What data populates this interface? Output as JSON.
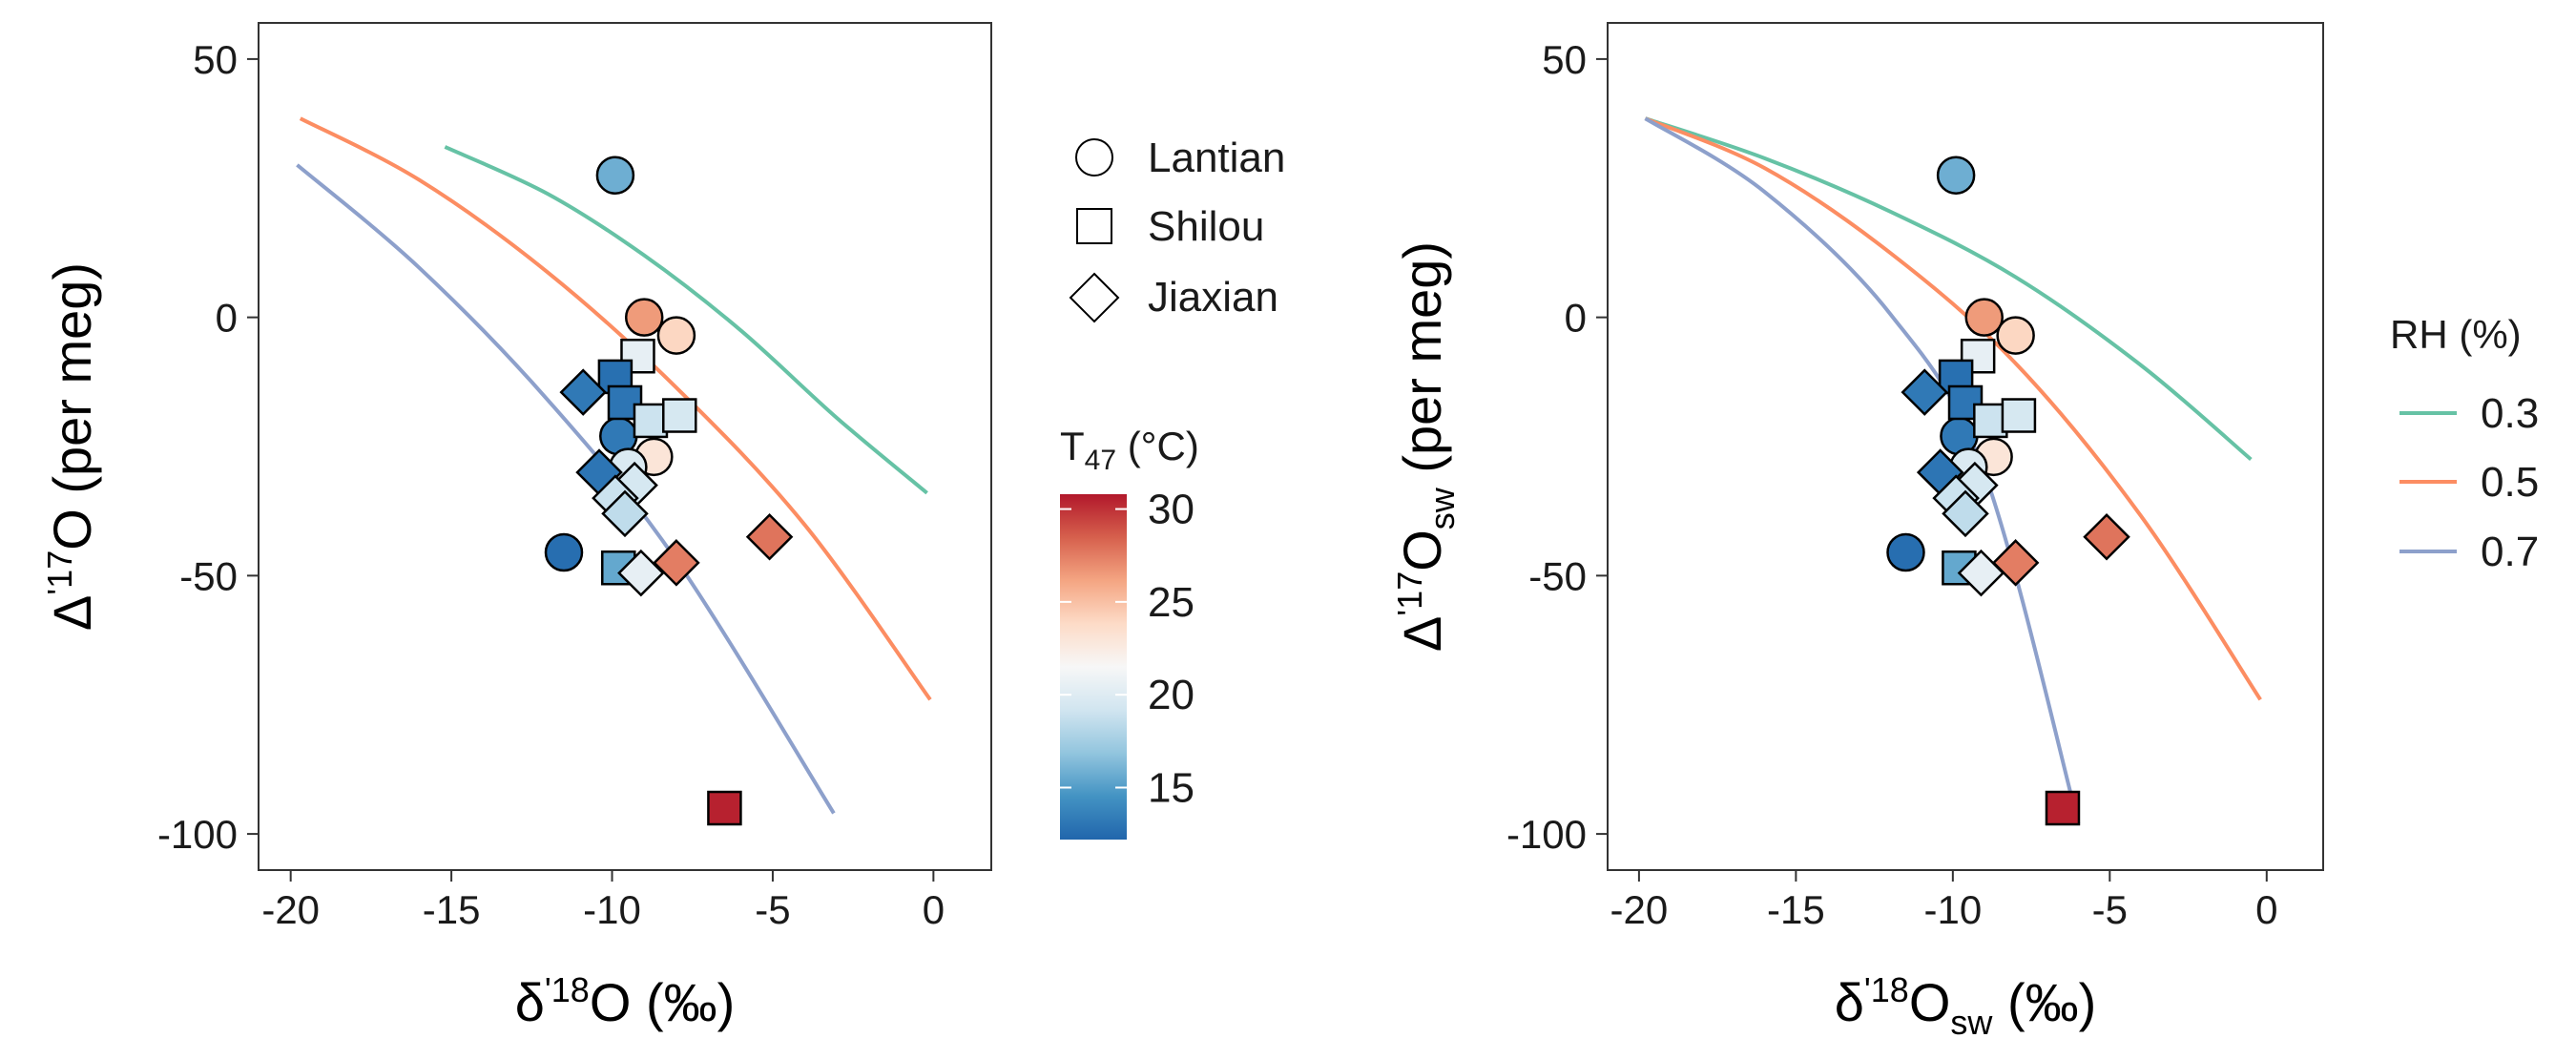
{
  "shape_legend": {
    "items": [
      {
        "label": "Lantian",
        "shape": "circle"
      },
      {
        "label": "Shilou",
        "shape": "square"
      },
      {
        "label": "Jiaxian",
        "shape": "diamond"
      }
    ]
  },
  "colorbar": {
    "title_main": "T",
    "title_sub": "47",
    "title_unit": " (°C)",
    "ticks": [
      {
        "value": 30,
        "label": "30"
      },
      {
        "value": 25,
        "label": "25"
      },
      {
        "value": 20,
        "label": "20"
      },
      {
        "value": 15,
        "label": "15"
      }
    ],
    "range": [
      12.2,
      30.8
    ],
    "colors": [
      "#2166ac",
      "#4393c3",
      "#92c5de",
      "#d1e5f0",
      "#f7f7f7",
      "#fddbc7",
      "#f4a582",
      "#d6604d",
      "#b2182b"
    ]
  },
  "rh_legend": {
    "title": "RH (%)",
    "items": [
      {
        "label": "0.3",
        "color": "#66c2a5"
      },
      {
        "label": "0.5",
        "color": "#fc8d62"
      },
      {
        "label": "0.7",
        "color": "#8da0cb"
      }
    ]
  },
  "chart_data": [
    {
      "type": "scatter",
      "xlabel": {
        "prefix": "δ",
        "sup": "'18",
        "main": "O (‰)",
        "sub": ""
      },
      "ylabel": {
        "prefix": "Δ",
        "sup": "'17",
        "main": "O (per meg)",
        "sub": ""
      },
      "xlim": [
        -21,
        1.8
      ],
      "ylim": [
        -107,
        57
      ],
      "xticks": [
        -20,
        -15,
        -10,
        -5,
        0
      ],
      "yticks": [
        50,
        0,
        -50,
        -100
      ],
      "curves": [
        {
          "rh": "0.3",
          "color": "#66c2a5",
          "x": [
            -15.2,
            -12.0,
            -9.0,
            -6.0,
            -3.0,
            -0.2
          ],
          "y": [
            33,
            23.9,
            12,
            -2.5,
            -19.5,
            -34
          ]
        },
        {
          "rh": "0.5",
          "color": "#fc8d62",
          "x": [
            -19.7,
            -16.0,
            -12.0,
            -8.0,
            -4.0,
            -0.1
          ],
          "y": [
            38.5,
            26.6,
            8.7,
            -13.6,
            -40.2,
            -74
          ]
        },
        {
          "rh": "0.7",
          "color": "#8da0cb",
          "x": [
            -19.8,
            -16.0,
            -12.0,
            -8.0,
            -3.1
          ],
          "y": [
            29.5,
            9.6,
            -16,
            -47,
            -96
          ]
        }
      ],
      "points": [
        {
          "site": "Lantian",
          "x": -9.9,
          "y": 27.5,
          "t": 15.8
        },
        {
          "site": "Lantian",
          "x": -9.0,
          "y": 0,
          "t": 26.5
        },
        {
          "site": "Lantian",
          "x": -8.0,
          "y": -3.5,
          "t": 24.0
        },
        {
          "site": "Lantian",
          "x": -8.7,
          "y": -27,
          "t": 23.0
        },
        {
          "site": "Lantian",
          "x": -9.8,
          "y": -23,
          "t": 13.2
        },
        {
          "site": "Lantian",
          "x": -9.5,
          "y": -29,
          "t": 19.8
        },
        {
          "site": "Lantian",
          "x": -11.5,
          "y": -45.5,
          "t": 12.6
        },
        {
          "site": "Shilou",
          "x": -9.2,
          "y": -7.5,
          "t": 20.5
        },
        {
          "site": "Shilou",
          "x": -9.9,
          "y": -11.5,
          "t": 12.7
        },
        {
          "site": "Shilou",
          "x": -9.6,
          "y": -16.5,
          "t": 13.0
        },
        {
          "site": "Shilou",
          "x": -8.8,
          "y": -20,
          "t": 19.0
        },
        {
          "site": "Shilou",
          "x": -7.9,
          "y": -19,
          "t": 19.5
        },
        {
          "site": "Shilou",
          "x": -9.8,
          "y": -48.5,
          "t": 15.5
        },
        {
          "site": "Shilou",
          "x": -6.5,
          "y": -95,
          "t": 30.5
        },
        {
          "site": "Jiaxian",
          "x": -10.9,
          "y": -14.5,
          "t": 13.2
        },
        {
          "site": "Jiaxian",
          "x": -10.4,
          "y": -30,
          "t": 13.0
        },
        {
          "site": "Jiaxian",
          "x": -9.3,
          "y": -32.5,
          "t": 19.5
        },
        {
          "site": "Jiaxian",
          "x": -9.9,
          "y": -35,
          "t": 19.0
        },
        {
          "site": "Jiaxian",
          "x": -9.6,
          "y": -38,
          "t": 18.5
        },
        {
          "site": "Jiaxian",
          "x": -9.1,
          "y": -49.5,
          "t": 20.5
        },
        {
          "site": "Jiaxian",
          "x": -8.0,
          "y": -47.5,
          "t": 27.5
        },
        {
          "site": "Jiaxian",
          "x": -5.1,
          "y": -42.5,
          "t": 27.8
        }
      ]
    },
    {
      "type": "scatter",
      "xlabel": {
        "prefix": "δ",
        "sup": "'18",
        "main": "O",
        "sub": "sw",
        "suffix": " (‰)"
      },
      "ylabel": {
        "prefix": "Δ",
        "sup": "'17",
        "main": "O",
        "sub": "sw",
        "suffix": " (per meg)"
      },
      "xlim": [
        -21,
        1.8
      ],
      "ylim": [
        -107,
        57
      ],
      "xticks": [
        -20,
        -15,
        -10,
        -5,
        0
      ],
      "yticks": [
        50,
        0,
        -50,
        -100
      ],
      "curves": [
        {
          "rh": "0.3",
          "color": "#66c2a5",
          "x": [
            -19.8,
            -16.0,
            -12.0,
            -8.0,
            -4.0,
            -0.5
          ],
          "y": [
            38.5,
            30.8,
            20.5,
            7.8,
            -9.3,
            -27.5
          ]
        },
        {
          "rh": "0.5",
          "color": "#fc8d62",
          "x": [
            -19.8,
            -16.0,
            -12.0,
            -8.0,
            -4.0,
            -0.2
          ],
          "y": [
            38.5,
            28.9,
            12.5,
            -8.9,
            -38.5,
            -74
          ]
        },
        {
          "rh": "0.7",
          "color": "#8da0cb",
          "x": [
            -19.8,
            -16.0,
            -12.0,
            -9.0,
            -6.0
          ],
          "y": [
            38.5,
            24.3,
            0.7,
            -30.0,
            -98
          ]
        }
      ],
      "points": [
        {
          "site": "Lantian",
          "x": -9.9,
          "y": 27.5,
          "t": 15.8
        },
        {
          "site": "Lantian",
          "x": -9.0,
          "y": 0,
          "t": 26.5
        },
        {
          "site": "Lantian",
          "x": -8.0,
          "y": -3.5,
          "t": 24.0
        },
        {
          "site": "Lantian",
          "x": -8.7,
          "y": -27,
          "t": 23.0
        },
        {
          "site": "Lantian",
          "x": -9.8,
          "y": -23,
          "t": 13.2
        },
        {
          "site": "Lantian",
          "x": -9.5,
          "y": -29,
          "t": 19.8
        },
        {
          "site": "Lantian",
          "x": -11.5,
          "y": -45.5,
          "t": 12.6
        },
        {
          "site": "Shilou",
          "x": -9.2,
          "y": -7.5,
          "t": 20.5
        },
        {
          "site": "Shilou",
          "x": -9.9,
          "y": -11.5,
          "t": 12.7
        },
        {
          "site": "Shilou",
          "x": -9.6,
          "y": -16.5,
          "t": 13.0
        },
        {
          "site": "Shilou",
          "x": -8.8,
          "y": -20,
          "t": 19.0
        },
        {
          "site": "Shilou",
          "x": -7.9,
          "y": -19,
          "t": 19.5
        },
        {
          "site": "Shilou",
          "x": -9.8,
          "y": -48.5,
          "t": 15.5
        },
        {
          "site": "Shilou",
          "x": -6.5,
          "y": -95,
          "t": 30.5
        },
        {
          "site": "Jiaxian",
          "x": -10.9,
          "y": -14.5,
          "t": 13.2
        },
        {
          "site": "Jiaxian",
          "x": -10.4,
          "y": -30,
          "t": 13.0
        },
        {
          "site": "Jiaxian",
          "x": -9.3,
          "y": -32.5,
          "t": 19.5
        },
        {
          "site": "Jiaxian",
          "x": -9.9,
          "y": -35,
          "t": 19.0
        },
        {
          "site": "Jiaxian",
          "x": -9.6,
          "y": -38,
          "t": 18.5
        },
        {
          "site": "Jiaxian",
          "x": -9.1,
          "y": -49.5,
          "t": 20.5
        },
        {
          "site": "Jiaxian",
          "x": -8.0,
          "y": -47.5,
          "t": 27.5
        },
        {
          "site": "Jiaxian",
          "x": -5.1,
          "y": -42.5,
          "t": 27.8
        }
      ]
    }
  ]
}
